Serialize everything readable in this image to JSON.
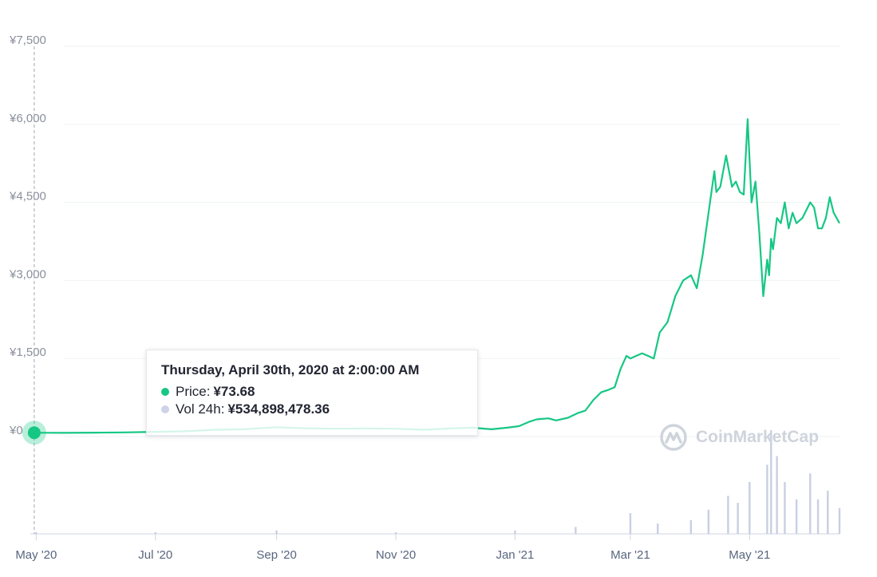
{
  "chart_data": {
    "type": "line",
    "currency_symbol": "¥",
    "y_ticks": [
      "¥7,500",
      "¥6,000",
      "¥4,500",
      "¥3,000",
      "¥1,500",
      "¥0"
    ],
    "ylim": [
      0,
      7500
    ],
    "x_ticks": [
      "May '20",
      "Jul '20",
      "Sep '20",
      "Nov '20",
      "Jan '21",
      "Mar '21",
      "May '21"
    ],
    "x_range": [
      "2020-04-28",
      "2021-06-16"
    ],
    "series": [
      {
        "kind": "price",
        "color": "#16c784",
        "x": [
          "2020-04-28",
          "2020-04-30",
          "2020-05-15",
          "2020-06-01",
          "2020-06-15",
          "2020-07-01",
          "2020-07-15",
          "2020-08-01",
          "2020-08-15",
          "2020-09-01",
          "2020-09-15",
          "2020-10-01",
          "2020-10-15",
          "2020-11-01",
          "2020-11-15",
          "2020-12-01",
          "2020-12-10",
          "2020-12-20",
          "2020-12-28",
          "2021-01-03",
          "2021-01-08",
          "2021-01-12",
          "2021-01-18",
          "2021-01-22",
          "2021-01-28",
          "2021-02-02",
          "2021-02-06",
          "2021-02-10",
          "2021-02-14",
          "2021-02-18",
          "2021-02-21",
          "2021-02-24",
          "2021-02-27",
          "2021-03-01",
          "2021-03-04",
          "2021-03-07",
          "2021-03-10",
          "2021-03-13",
          "2021-03-16",
          "2021-03-20",
          "2021-03-24",
          "2021-03-28",
          "2021-04-01",
          "2021-04-04",
          "2021-04-07",
          "2021-04-10",
          "2021-04-13",
          "2021-04-14",
          "2021-04-16",
          "2021-04-19",
          "2021-04-22",
          "2021-04-24",
          "2021-04-26",
          "2021-04-28",
          "2021-04-30",
          "2021-05-02",
          "2021-05-04",
          "2021-05-06",
          "2021-05-08",
          "2021-05-10",
          "2021-05-11",
          "2021-05-12",
          "2021-05-13",
          "2021-05-15",
          "2021-05-17",
          "2021-05-19",
          "2021-05-21",
          "2021-05-23",
          "2021-05-25",
          "2021-05-28",
          "2021-06-01",
          "2021-06-03",
          "2021-06-05",
          "2021-06-07",
          "2021-06-09",
          "2021-06-11",
          "2021-06-13",
          "2021-06-16"
        ],
        "y": [
          80,
          73.68,
          70,
          75,
          80,
          90,
          100,
          130,
          140,
          180,
          160,
          150,
          155,
          150,
          130,
          160,
          170,
          140,
          170,
          200,
          280,
          330,
          350,
          310,
          360,
          450,
          500,
          700,
          850,
          900,
          950,
          1300,
          1550,
          1500,
          1550,
          1600,
          1550,
          1500,
          2000,
          2200,
          2700,
          3000,
          3100,
          2850,
          3500,
          4300,
          5100,
          4700,
          4800,
          5400,
          4800,
          4900,
          4700,
          4650,
          6100,
          4500,
          4900,
          3900,
          2700,
          3400,
          3100,
          3800,
          3600,
          4200,
          4100,
          4500,
          4000,
          4300,
          4100,
          4200,
          4500,
          4400,
          4000,
          4000,
          4200,
          4600,
          4300,
          4100
        ]
      },
      {
        "kind": "volume",
        "color": "#c9cfe2",
        "x": [
          "2020-05-01",
          "2020-07-01",
          "2020-09-01",
          "2020-11-01",
          "2021-01-01",
          "2021-02-01",
          "2021-03-01",
          "2021-03-15",
          "2021-04-01",
          "2021-04-10",
          "2021-04-20",
          "2021-04-25",
          "2021-05-01",
          "2021-05-10",
          "2021-05-12",
          "2021-05-15",
          "2021-05-19",
          "2021-05-25",
          "2021-06-01",
          "2021-06-05",
          "2021-06-10",
          "2021-06-16"
        ],
        "y": [
          1,
          1,
          2,
          1,
          2,
          4,
          12,
          6,
          8,
          14,
          22,
          18,
          30,
          40,
          60,
          45,
          30,
          20,
          35,
          20,
          25,
          15
        ]
      }
    ],
    "grid": true,
    "legend": "none"
  },
  "tooltip": {
    "title": "Thursday, April 30th, 2020 at 2:00:00 AM",
    "price_label": "Price:",
    "price_value": "¥73.68",
    "price_color": "#16c784",
    "vol_label": "Vol 24h:",
    "vol_value": "¥534,898,478.36",
    "vol_color": "#cfd3e8"
  },
  "watermark": {
    "text": "CoinMarketCap",
    "color": "#cfd4dc"
  }
}
